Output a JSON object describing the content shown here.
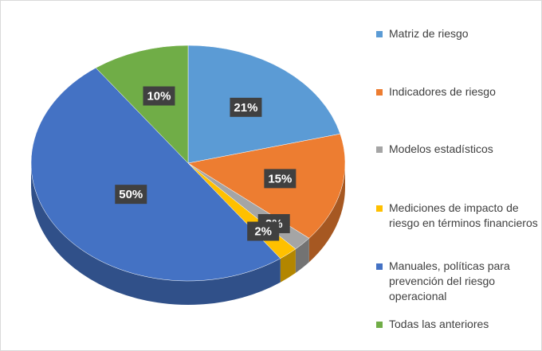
{
  "chart_data": {
    "type": "pie3d",
    "categories": [
      "Matriz de riesgo",
      "Indicadores de riesgo",
      "Modelos estadísticos",
      "Mediciones de impacto de riesgo en términos financieros",
      "Manuales, políticas para prevención del riesgo operacional",
      "Todas las anteriores"
    ],
    "values": [
      21,
      15,
      2,
      2,
      50,
      10
    ],
    "value_labels": [
      "21%",
      "15%",
      "2%",
      "2%",
      "50%",
      "10%"
    ],
    "colors": [
      "#5b9bd5",
      "#ed7d31",
      "#a5a5a5",
      "#ffc000",
      "#4472c4",
      "#70ad47"
    ],
    "legend": "right"
  }
}
